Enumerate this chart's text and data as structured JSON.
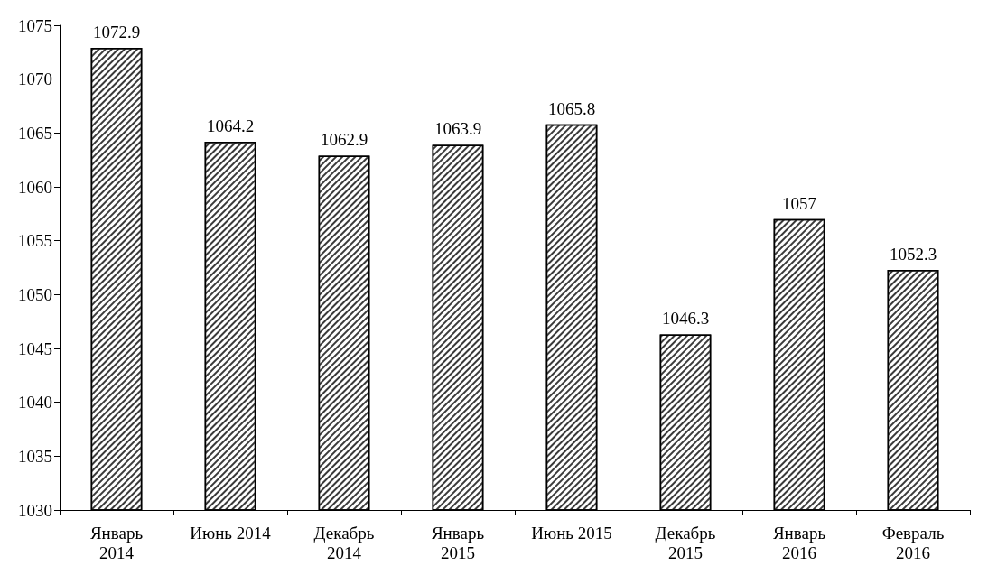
{
  "chart_data": {
    "type": "bar",
    "categories": [
      "Январь\n2014",
      "Июнь 2014",
      "Декабрь\n2014",
      "Январь\n2015",
      "Июнь 2015",
      "Декабрь\n2015",
      "Январь\n2016",
      "Февраль\n2016"
    ],
    "values": [
      1072.9,
      1064.2,
      1062.9,
      1063.9,
      1065.8,
      1046.3,
      1057,
      1052.3
    ],
    "color": "#ffffff",
    "ylim": [
      1030,
      1075
    ],
    "yticks": [
      1030,
      1035,
      1040,
      1045,
      1050,
      1055,
      1060,
      1065,
      1070,
      1075
    ],
    "data_labels": true,
    "grid": false
  }
}
